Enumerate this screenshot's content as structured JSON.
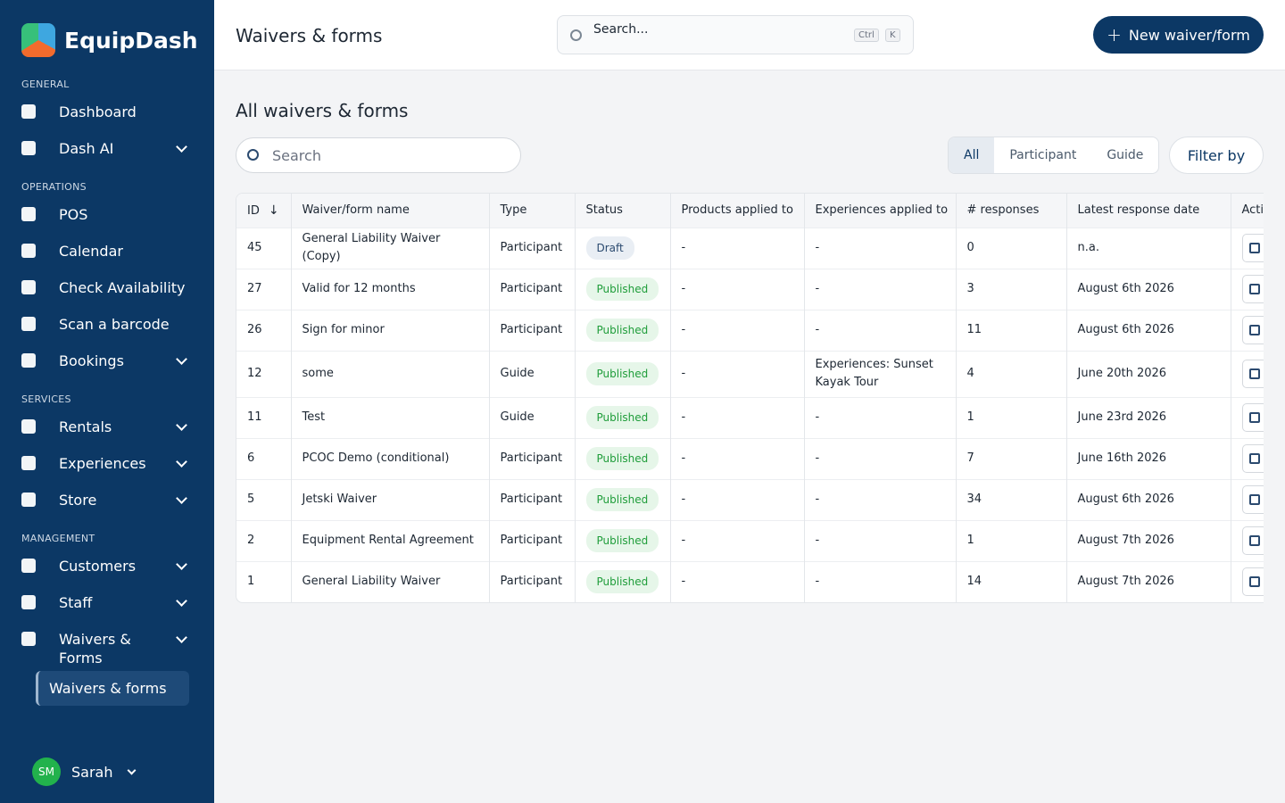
{
  "sidebar": {
    "brand": "EquipDash",
    "sections": [
      {
        "title": "GENERAL",
        "items": [
          {
            "label": "Dashboard",
            "expandable": false
          },
          {
            "label": "Dash AI",
            "expandable": true
          }
        ]
      },
      {
        "title": "OPERATIONS",
        "items": [
          {
            "label": "POS",
            "expandable": false
          },
          {
            "label": "Calendar",
            "expandable": false
          },
          {
            "label": "Check Availability",
            "expandable": false
          },
          {
            "label": "Scan a barcode",
            "expandable": false
          },
          {
            "label": "Bookings",
            "expandable": true
          }
        ]
      },
      {
        "title": "SERVICES",
        "items": [
          {
            "label": "Rentals",
            "expandable": true
          },
          {
            "label": "Experiences",
            "expandable": true
          },
          {
            "label": "Store",
            "expandable": true
          }
        ]
      },
      {
        "title": "MANAGEMENT",
        "items": [
          {
            "label": "Customers",
            "expandable": true
          },
          {
            "label": "Staff",
            "expandable": true
          },
          {
            "label": "Waivers & Forms",
            "expandable": true,
            "subitems": [
              "Waivers & forms"
            ]
          }
        ]
      }
    ],
    "user": {
      "initials": "SM",
      "name": "Sarah"
    }
  },
  "header": {
    "title": "Waivers & forms",
    "search_placeholder": "Search...",
    "shortcut": [
      "Ctrl",
      "K"
    ],
    "new_button": "New waiver/form"
  },
  "main": {
    "heading": "All waivers & forms",
    "search_placeholder": "Search",
    "tabs": [
      {
        "label": "All",
        "active": true
      },
      {
        "label": "Participant",
        "active": false
      },
      {
        "label": "Guide",
        "active": false
      }
    ],
    "filter_button": "Filter by"
  },
  "table": {
    "columns": [
      "ID",
      "Waiver/form name",
      "Type",
      "Status",
      "Products applied to",
      "Experiences applied to",
      "# responses",
      "Latest response date",
      "Actions"
    ],
    "rows": [
      [
        45,
        "General Liability Waiver (Copy)",
        "Participant",
        {
          "label": "Draft",
          "color": "#2b4a6f",
          "background": "#e9eef4"
        },
        "-",
        "-",
        0,
        "n.a."
      ],
      [
        27,
        "Valid for 12 months",
        "Participant",
        {
          "label": "Published",
          "color": "#1f9d3a",
          "background": "#e6f6e9"
        },
        "-",
        "-",
        3,
        "August 6th 2026"
      ],
      [
        26,
        "Sign for minor",
        "Participant",
        {
          "label": "Published",
          "color": "#1f9d3a",
          "background": "#e6f6e9"
        },
        "-",
        "-",
        11,
        "August 6th 2026"
      ],
      [
        12,
        "some",
        "Guide",
        {
          "label": "Published",
          "color": "#1f9d3a",
          "background": "#e6f6e9"
        },
        "-",
        "Experiences: Sunset Kayak Tour",
        4,
        "June 20th 2026"
      ],
      [
        11,
        "Test",
        "Guide",
        {
          "label": "Published",
          "color": "#1f9d3a",
          "background": "#e6f6e9"
        },
        "-",
        "-",
        1,
        "June 23rd 2026"
      ],
      [
        6,
        "PCOC Demo (conditional)",
        "Participant",
        {
          "label": "Published",
          "color": "#1f9d3a",
          "background": "#e6f6e9"
        },
        "-",
        "-",
        7,
        "June 16th 2026"
      ],
      [
        5,
        "Jetski Waiver",
        "Participant",
        {
          "label": "Published",
          "color": "#1f9d3a",
          "background": "#e6f6e9"
        },
        "-",
        "-",
        34,
        "August 6th 2026"
      ],
      [
        2,
        "Equipment Rental Agreement",
        "Participant",
        {
          "label": "Published",
          "color": "#1f9d3a",
          "background": "#e6f6e9"
        },
        "-",
        "-",
        1,
        "August 7th 2026"
      ],
      [
        1,
        "General Liability Waiver",
        "Participant",
        {
          "label": "Published",
          "color": "#1f9d3a",
          "background": "#e6f6e9"
        },
        "-",
        "-",
        14,
        "August 7th 2026"
      ]
    ]
  }
}
